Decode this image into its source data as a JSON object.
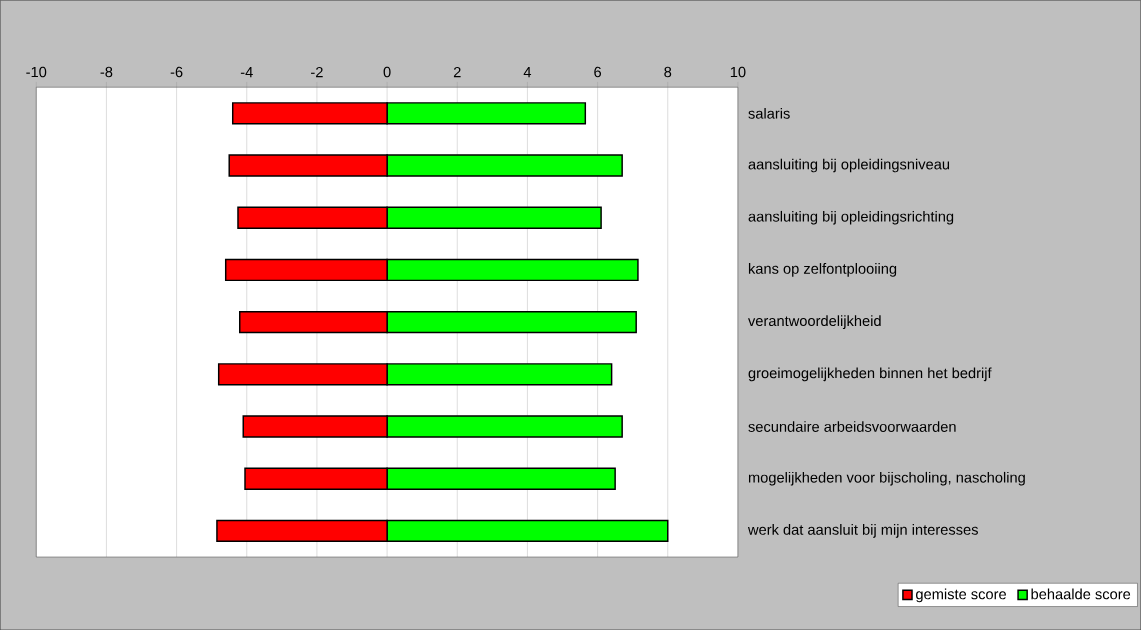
{
  "chart_data": {
    "type": "bar",
    "orientation": "horizontal",
    "categories": [
      "salaris",
      "aansluiting bij opleidingsniveau",
      "aansluiting bij opleidingsrichting",
      "kans op zelfontplooiing",
      "verantwoordelijkheid",
      "groeimogelijkheden binnen het bedrijf",
      "secundaire arbeidsvoorwaarden",
      "mogelijkheden voor bijscholing, nascholing",
      "werk dat aansluit bij mijn interesses"
    ],
    "series": [
      {
        "name": "gemiste score",
        "color": "#ff0000",
        "values": [
          -4.4,
          -4.5,
          -4.25,
          -4.6,
          -4.2,
          -4.8,
          -4.1,
          -4.05,
          -4.85
        ]
      },
      {
        "name": "behaalde score",
        "color": "#00ff00",
        "values": [
          5.65,
          6.7,
          6.1,
          7.15,
          7.1,
          6.4,
          6.7,
          6.5,
          8.0
        ]
      }
    ],
    "xlim": [
      -10,
      10
    ],
    "xticks": [
      -10,
      -8,
      -6,
      -4,
      -2,
      0,
      2,
      4,
      6,
      8,
      10
    ],
    "stacked": true,
    "grid": "x",
    "legend": "bottom right"
  }
}
